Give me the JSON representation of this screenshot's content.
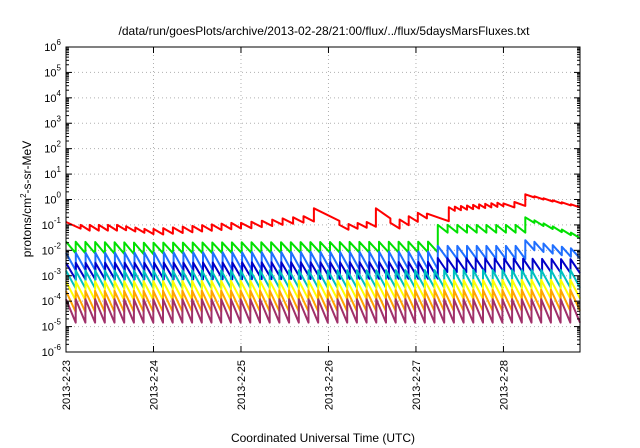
{
  "chart_data": {
    "type": "line",
    "title": "/data/run/goesPlots/archive/2013-02-28/21:00/flux/../flux/5daysMarsFluxes.txt",
    "xlabel": "Coordinated Universal Time (UTC)",
    "ylabel": "protons/cm²-s-sr-MeV",
    "ylabel_parts": {
      "pre": "protons/cm",
      "sup": "2",
      "post": "-s-sr-MeV"
    },
    "yscale": "log",
    "ylim": [
      1e-06,
      1000000.0
    ],
    "xlim": [
      "2013-02-23",
      "2013-02-28T21:00"
    ],
    "y_ticks": [
      {
        "value": 1e-06,
        "exp": "-6"
      },
      {
        "value": 1e-05,
        "exp": "-5"
      },
      {
        "value": 0.0001,
        "exp": "-4"
      },
      {
        "value": 0.001,
        "exp": "-3"
      },
      {
        "value": 0.01,
        "exp": "-2"
      },
      {
        "value": 0.1,
        "exp": "-1"
      },
      {
        "value": 1,
        "exp": "0"
      },
      {
        "value": 10,
        "exp": "1"
      },
      {
        "value": 100,
        "exp": "2"
      },
      {
        "value": 1000,
        "exp": "3"
      },
      {
        "value": 10000,
        "exp": "4"
      },
      {
        "value": 100000,
        "exp": "5"
      },
      {
        "value": 1000000,
        "exp": "6"
      }
    ],
    "x_ticks": [
      {
        "value": "2013-02-23",
        "label": "2013-2-23"
      },
      {
        "value": "2013-02-24",
        "label": "2013-2-24"
      },
      {
        "value": "2013-02-25",
        "label": "2013-2-25"
      },
      {
        "value": "2013-02-26",
        "label": "2013-2-26"
      },
      {
        "value": "2013-02-27",
        "label": "2013-2-27"
      },
      {
        "value": "2013-02-28",
        "label": "2013-2-28"
      }
    ],
    "grid": true,
    "series": [
      {
        "color": "#ff0000",
        "sawtooth": true,
        "segments": [
          {
            "start": "2013-02-23T00:00",
            "end": "2013-02-23T04:00",
            "count": 1,
            "peak_start": 0.13,
            "peak_end": 0.13,
            "ratio": 0.55
          },
          {
            "start": "2013-02-23T04:00",
            "end": "2013-02-23T14:00",
            "count": 4,
            "peak_start": 0.1,
            "peak_end": 0.1,
            "ratio": 0.6
          },
          {
            "start": "2013-02-23T14:00",
            "end": "2013-02-24T00:00",
            "count": 4,
            "peak_start": 0.1,
            "peak_end": 0.07,
            "ratio": 0.62
          },
          {
            "start": "2013-02-24T00:00",
            "end": "2013-02-25T00:00",
            "count": 9,
            "peak_start": 0.07,
            "peak_end": 0.12,
            "ratio": 0.6
          },
          {
            "start": "2013-02-25T00:00",
            "end": "2013-02-25T20:00",
            "count": 7,
            "peak_start": 0.12,
            "peak_end": 0.22,
            "ratio": 0.62
          },
          {
            "start": "2013-02-25T20:00",
            "end": "2013-02-26T03:00",
            "count": 1,
            "peak_start": 0.45,
            "peak_end": 0.45,
            "ratio": 0.32
          },
          {
            "start": "2013-02-26T03:00",
            "end": "2013-02-26T13:00",
            "count": 4,
            "peak_start": 0.1,
            "peak_end": 0.13,
            "ratio": 0.65
          },
          {
            "start": "2013-02-26T13:00",
            "end": "2013-02-26T17:00",
            "count": 1,
            "peak_start": 0.45,
            "peak_end": 0.45,
            "ratio": 0.4
          },
          {
            "start": "2013-02-26T17:00",
            "end": "2013-02-27T03:00",
            "count": 4,
            "peak_start": 0.12,
            "peak_end": 0.3,
            "ratio": 0.6
          },
          {
            "start": "2013-02-27T03:00",
            "end": "2013-02-27T09:00",
            "count": 1,
            "peak_start": 0.28,
            "peak_end": 0.28,
            "ratio": 0.5
          },
          {
            "start": "2013-02-27T09:00",
            "end": "2013-02-28T00:00",
            "count": 9,
            "peak_start": 0.5,
            "peak_end": 0.75,
            "ratio": 0.72
          },
          {
            "start": "2013-02-28T00:00",
            "end": "2013-02-28T06:00",
            "count": 2,
            "peak_start": 0.7,
            "peak_end": 0.8,
            "ratio": 0.7
          },
          {
            "start": "2013-02-28T06:00",
            "end": "2013-02-28T21:00",
            "count": 6,
            "peak_start": 1.6,
            "peak_end": 0.65,
            "ratio": 0.75
          }
        ]
      },
      {
        "color": "#00e000",
        "sawtooth": true,
        "segments": [
          {
            "start": "2013-02-23T00:00",
            "end": "2013-02-24T00:00",
            "count": 9,
            "peak_start": 0.022,
            "peak_end": 0.02,
            "ratio": 0.35
          },
          {
            "start": "2013-02-24T00:00",
            "end": "2013-02-27T06:00",
            "count": 29,
            "peak_start": 0.02,
            "peak_end": 0.022,
            "ratio": 0.38
          },
          {
            "start": "2013-02-27T06:00",
            "end": "2013-02-28T06:00",
            "count": 9,
            "peak_start": 0.1,
            "peak_end": 0.1,
            "ratio": 0.5
          },
          {
            "start": "2013-02-28T06:00",
            "end": "2013-02-28T21:00",
            "count": 6,
            "peak_start": 0.2,
            "peak_end": 0.05,
            "ratio": 0.6
          }
        ]
      },
      {
        "color": "#1f6fff",
        "sawtooth": true,
        "segments": [
          {
            "start": "2013-02-23T00:00",
            "end": "2013-02-27T06:00",
            "count": 38,
            "peak_start": 0.008,
            "peak_end": 0.009,
            "ratio": 0.2
          },
          {
            "start": "2013-02-27T06:00",
            "end": "2013-02-28T06:00",
            "count": 9,
            "peak_start": 0.015,
            "peak_end": 0.015,
            "ratio": 0.3
          },
          {
            "start": "2013-02-28T06:00",
            "end": "2013-02-28T21:00",
            "count": 6,
            "peak_start": 0.025,
            "peak_end": 0.012,
            "ratio": 0.4
          }
        ]
      },
      {
        "color": "#0000c8",
        "sawtooth": true,
        "segments": [
          {
            "start": "2013-02-23T00:00",
            "end": "2013-02-27T06:00",
            "count": 38,
            "peak_start": 0.0032,
            "peak_end": 0.0035,
            "ratio": 0.22
          },
          {
            "start": "2013-02-27T06:00",
            "end": "2013-02-28T21:00",
            "count": 15,
            "peak_start": 0.005,
            "peak_end": 0.0045,
            "ratio": 0.28
          }
        ]
      },
      {
        "color": "#00c0c0",
        "sawtooth": true,
        "segments": [
          {
            "start": "2013-02-23T00:00",
            "end": "2013-02-28T21:00",
            "count": 53,
            "peak_start": 0.0016,
            "peak_end": 0.0017,
            "ratio": 0.2
          }
        ]
      },
      {
        "color": "#ffff00",
        "sawtooth": true,
        "segments": [
          {
            "start": "2013-02-23T00:00",
            "end": "2013-02-28T21:00",
            "count": 53,
            "peak_start": 0.0006,
            "peak_end": 0.0007,
            "ratio": 0.18
          }
        ]
      },
      {
        "color": "#ffa500",
        "sawtooth": true,
        "segments": [
          {
            "start": "2013-02-23T00:00",
            "end": "2013-02-28T21:00",
            "count": 53,
            "peak_start": 0.00025,
            "peak_end": 0.00028,
            "ratio": 0.15
          }
        ]
      },
      {
        "color": "#a0306a",
        "sawtooth": true,
        "segments": [
          {
            "start": "2013-02-23T00:00",
            "end": "2013-02-28T21:00",
            "count": 53,
            "peak_start": 0.00012,
            "peak_end": 0.00012,
            "ratio": 0.12
          }
        ]
      }
    ]
  }
}
